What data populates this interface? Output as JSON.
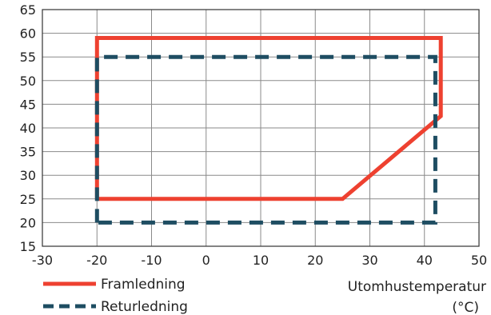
{
  "chart_data": {
    "type": "line",
    "xlabel": "Utomhustemperatur",
    "xlabel_unit": "(°C)",
    "ylabel": "",
    "xlim": [
      -30,
      50
    ],
    "ylim": [
      15,
      65
    ],
    "x_ticks": [
      -30,
      -20,
      -10,
      0,
      10,
      20,
      30,
      40,
      50
    ],
    "y_ticks": [
      15,
      20,
      25,
      30,
      35,
      40,
      45,
      50,
      55,
      60,
      65
    ],
    "x_tick_labels": [
      "-30",
      "-20",
      "-10",
      "0",
      "10",
      "20",
      "30",
      "40",
      "50"
    ],
    "y_tick_labels": [
      "15",
      "20",
      "25",
      "30",
      "35",
      "40",
      "45",
      "50",
      "55",
      "60",
      "65"
    ],
    "grid": true,
    "legend_position": "bottom-left",
    "series": [
      {
        "name": "Framledning",
        "style": "solid",
        "color": "#ee4130",
        "points": [
          [
            -20,
            25
          ],
          [
            -20,
            59
          ],
          [
            43,
            59
          ],
          [
            43,
            42.5
          ],
          [
            25,
            25
          ],
          [
            -20,
            25
          ]
        ]
      },
      {
        "name": "Returledning",
        "style": "dashed",
        "color": "#1e4d62",
        "points": [
          [
            -20,
            20
          ],
          [
            -20,
            55
          ],
          [
            42,
            55
          ],
          [
            42,
            20
          ],
          [
            -20,
            20
          ]
        ]
      }
    ]
  }
}
